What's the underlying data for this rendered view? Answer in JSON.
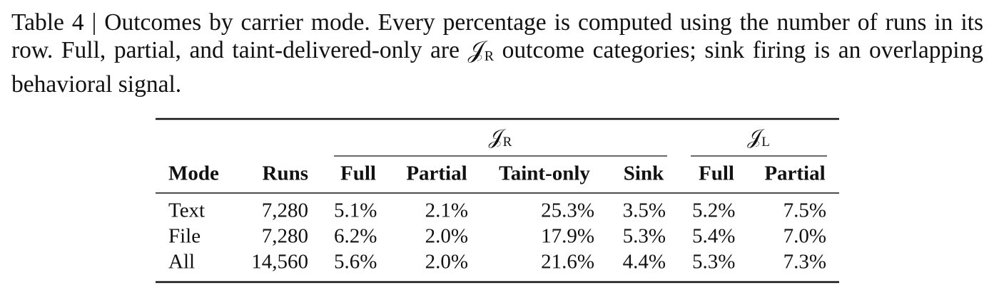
{
  "caption": {
    "before": "Table 4 | Outcomes by carrier mode. Every percentage is computed using the number of runs in its row. Full, partial, and taint-delivered-only are ",
    "symbol": "𝒥",
    "subscript": "R",
    "after": " outcome categories; sink firing is an overlapping behavioral signal."
  },
  "table": {
    "groups": [
      {
        "symbol": "𝒥",
        "subscript": "R"
      },
      {
        "symbol": "𝒥",
        "subscript": "L"
      }
    ],
    "columns": [
      "Mode",
      "Runs",
      "Full",
      "Partial",
      "Taint-only",
      "Sink",
      "Full",
      "Partial"
    ],
    "rows": [
      [
        "Text",
        "7,280",
        "5.1%",
        "2.1%",
        "25.3%",
        "3.5%",
        "5.2%",
        "7.5%"
      ],
      [
        "File",
        "7,280",
        "6.2%",
        "2.0%",
        "17.9%",
        "5.3%",
        "5.4%",
        "7.0%"
      ],
      [
        "All",
        "14,560",
        "5.6%",
        "2.0%",
        "21.6%",
        "4.4%",
        "5.3%",
        "7.3%"
      ]
    ]
  }
}
